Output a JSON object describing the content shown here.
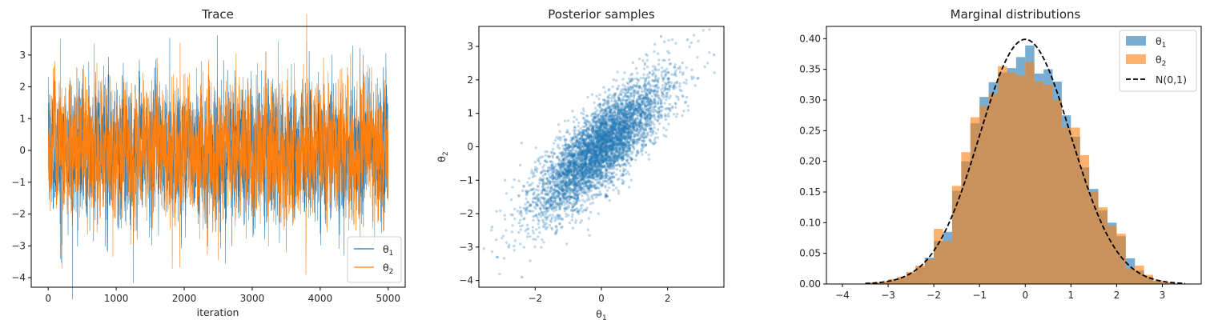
{
  "chart_data": [
    {
      "type": "line",
      "title": "Trace",
      "xlabel": "iteration",
      "ylabel": "",
      "xlim": [
        -250,
        5250
      ],
      "ylim": [
        -4.3,
        3.9
      ],
      "xticks": [
        0,
        1000,
        2000,
        3000,
        4000,
        5000
      ],
      "yticks": [
        -4,
        -3,
        -2,
        -1,
        0,
        1,
        2,
        3
      ],
      "legend": {
        "location": "lower right"
      },
      "series": [
        {
          "name": "θ1",
          "color": "#1f77b4",
          "n_samples": 5000,
          "approx_peaks": [
            {
              "x": 180,
              "y": 3.6
            },
            {
              "x": 420,
              "y": 2.6
            },
            {
              "x": 1600,
              "y": 2.9
            },
            {
              "x": 2250,
              "y": 2.8
            },
            {
              "x": 3200,
              "y": 3.1
            },
            {
              "x": 3800,
              "y": 3.4
            },
            {
              "x": 4400,
              "y": 2.6
            },
            {
              "x": 4800,
              "y": 2.5
            }
          ],
          "approx_troughs": [
            {
              "x": 180,
              "y": -3.4
            },
            {
              "x": 1250,
              "y": -2.7
            },
            {
              "x": 2700,
              "y": -3.0
            },
            {
              "x": 3400,
              "y": -2.9
            },
            {
              "x": 4350,
              "y": -3.3
            },
            {
              "x": 4800,
              "y": -2.9
            }
          ]
        },
        {
          "name": "θ2",
          "color": "#ff7f0e",
          "n_samples": 5000,
          "approx_peaks": [
            {
              "x": 180,
              "y": 3.5
            },
            {
              "x": 420,
              "y": 2.6
            },
            {
              "x": 1600,
              "y": 2.9
            },
            {
              "x": 2250,
              "y": 2.8
            },
            {
              "x": 3200,
              "y": 3.1
            },
            {
              "x": 3800,
              "y": 3.6
            },
            {
              "x": 4400,
              "y": 2.6
            },
            {
              "x": 4800,
              "y": 2.5
            }
          ],
          "approx_troughs": [
            {
              "x": 200,
              "y": -3.7
            },
            {
              "x": 1250,
              "y": -2.5
            },
            {
              "x": 2700,
              "y": -2.9
            },
            {
              "x": 3790,
              "y": -3.9
            },
            {
              "x": 4350,
              "y": -3.0
            },
            {
              "x": 4800,
              "y": -2.7
            }
          ]
        }
      ]
    },
    {
      "type": "scatter",
      "title": "Posterior samples",
      "xlabel": "θ1",
      "ylabel": "θ2",
      "xlim": [
        -3.7,
        3.7
      ],
      "ylim": [
        -4.2,
        3.6
      ],
      "xticks": [
        -2,
        0,
        2
      ],
      "yticks": [
        -4,
        -3,
        -2,
        -1,
        0,
        1,
        2,
        3
      ],
      "series": [
        {
          "color": "#1f77b4",
          "n_points": 5000,
          "mean": [
            0,
            0
          ],
          "std": [
            1,
            1
          ],
          "correlation": 0.8,
          "notable_points": [
            {
              "x": -2.4,
              "y": -3.9
            },
            {
              "x": 3.4,
              "y": 2.75
            },
            {
              "x": 2.6,
              "y": 3.2
            },
            {
              "x": 1.8,
              "y": 3.3
            },
            {
              "x": -3.3,
              "y": -2.4
            },
            {
              "x": -2.8,
              "y": -3.0
            }
          ]
        }
      ]
    },
    {
      "type": "bar",
      "title": "Marginal distributions",
      "xlabel": "",
      "ylabel": "",
      "xlim": [
        -4.35,
        3.85
      ],
      "ylim": [
        0,
        0.42
      ],
      "xticks": [
        -4,
        -3,
        -2,
        -1,
        0,
        1,
        2,
        3
      ],
      "yticks": [
        0.0,
        0.05,
        0.1,
        0.15,
        0.2,
        0.25,
        0.3,
        0.35,
        0.4
      ],
      "ytick_labels": [
        "0.00",
        "0.05",
        "0.10",
        "0.15",
        "0.20",
        "0.25",
        "0.30",
        "0.35",
        "0.40"
      ],
      "legend": {
        "location": "upper right"
      },
      "series": [
        {
          "name": "θ1",
          "color": "#1f77b4",
          "bin_width": 0.2,
          "bin_starts": [
            -3.4,
            -3.2,
            -3.0,
            -2.8,
            -2.6,
            -2.4,
            -2.2,
            -2.0,
            -1.8,
            -1.6,
            -1.4,
            -1.2,
            -1.0,
            -0.8,
            -0.6,
            -0.4,
            -0.2,
            0.0,
            0.2,
            0.4,
            0.6,
            0.8,
            1.0,
            1.2,
            1.4,
            1.6,
            1.8,
            2.0,
            2.2,
            2.4,
            2.6,
            2.8,
            3.0
          ],
          "values": [
            0.002,
            0.003,
            0.006,
            0.01,
            0.018,
            0.028,
            0.043,
            0.07,
            0.085,
            0.152,
            0.2,
            0.262,
            0.305,
            0.329,
            0.345,
            0.352,
            0.37,
            0.389,
            0.343,
            0.35,
            0.33,
            0.275,
            0.24,
            0.19,
            0.155,
            0.12,
            0.1,
            0.078,
            0.042,
            0.022,
            0.012,
            0.005,
            0.002
          ]
        },
        {
          "name": "θ2",
          "color": "#ff7f0e",
          "bin_width": 0.2,
          "bin_starts": [
            -3.4,
            -3.2,
            -3.0,
            -2.8,
            -2.6,
            -2.4,
            -2.2,
            -2.0,
            -1.8,
            -1.6,
            -1.4,
            -1.2,
            -1.0,
            -0.8,
            -0.6,
            -0.4,
            -0.2,
            0.0,
            0.2,
            0.4,
            0.6,
            0.8,
            1.0,
            1.2,
            1.4,
            1.6,
            1.8,
            2.0,
            2.2,
            2.4,
            2.6,
            2.8,
            3.0
          ],
          "values": [
            0.002,
            0.004,
            0.008,
            0.012,
            0.02,
            0.03,
            0.04,
            0.09,
            0.07,
            0.16,
            0.215,
            0.272,
            0.29,
            0.31,
            0.355,
            0.345,
            0.34,
            0.362,
            0.33,
            0.325,
            0.3,
            0.255,
            0.255,
            0.21,
            0.15,
            0.125,
            0.095,
            0.082,
            0.025,
            0.03,
            0.015,
            0.006,
            0.003
          ]
        },
        {
          "name": "N(0,1)",
          "type": "line",
          "style": "dashed",
          "color": "#000000",
          "function": "standard normal pdf",
          "x_range": [
            -3.5,
            3.5
          ]
        }
      ]
    }
  ]
}
